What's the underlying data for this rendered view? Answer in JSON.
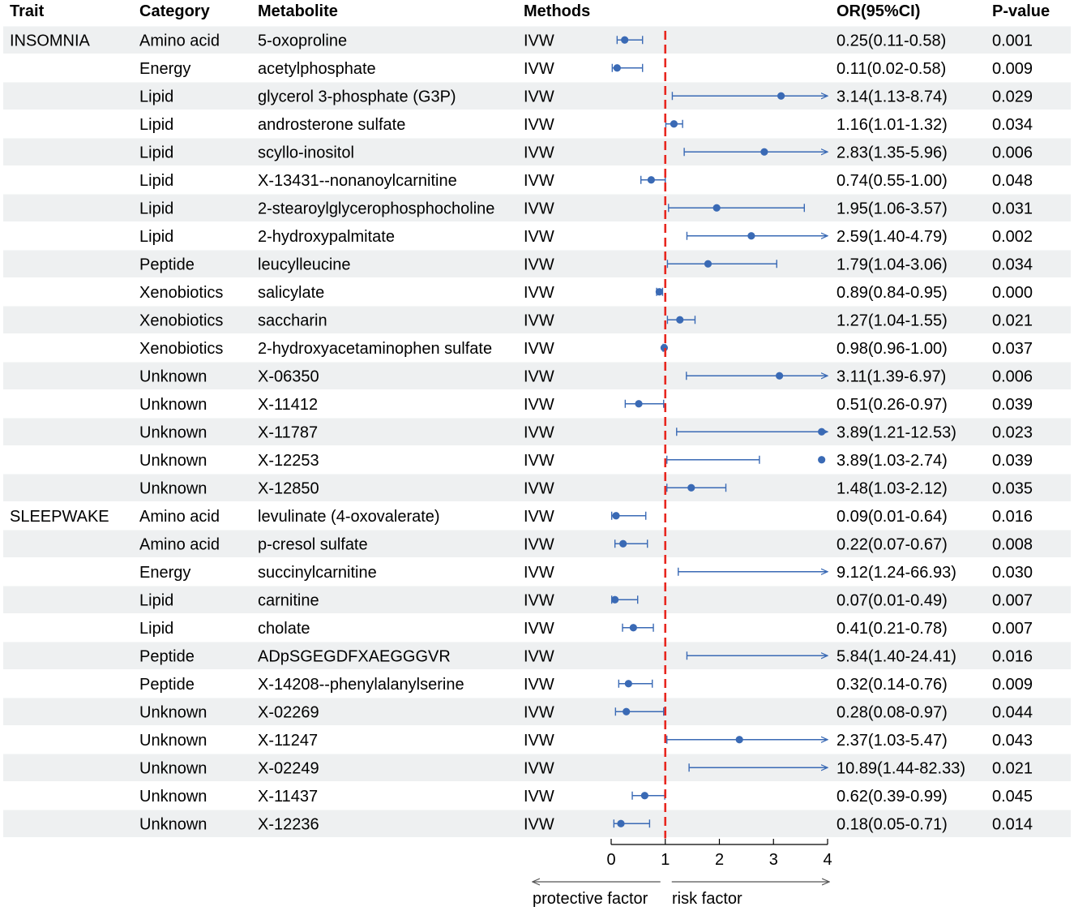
{
  "chart_data": {
    "type": "forest",
    "headers": {
      "trait": "Trait",
      "category": "Category",
      "metabolite": "Metabolite",
      "method": "Methods",
      "or_ci": "OR(95%CI)",
      "pvalue": "P-value"
    },
    "reference_value": 1,
    "axis": {
      "min": 0,
      "max": 4,
      "ticks": [
        0,
        1,
        2,
        3,
        4
      ]
    },
    "axis_annotations": {
      "left": "protective factor",
      "right": "risk factor"
    },
    "colors": {
      "point": "#3a6ab5",
      "reference_line": "#e8271f",
      "stripe": "#eef0f1",
      "axis": "#000000",
      "arrow": "#555555"
    },
    "rows": [
      {
        "trait": "INSOMNIA",
        "category": "Amino acid",
        "metabolite": "5-oxoproline",
        "method": "IVW",
        "or": 0.25,
        "lower": 0.11,
        "upper": 0.58,
        "or_ci": "0.25(0.11-0.58)",
        "pvalue": "0.001"
      },
      {
        "trait": "",
        "category": "Energy",
        "metabolite": "acetylphosphate",
        "method": "IVW",
        "or": 0.11,
        "lower": 0.02,
        "upper": 0.58,
        "or_ci": "0.11(0.02-0.58)",
        "pvalue": "0.009"
      },
      {
        "trait": "",
        "category": "Lipid",
        "metabolite": "glycerol 3-phosphate (G3P)",
        "method": "IVW",
        "or": 3.14,
        "lower": 1.13,
        "upper": 8.74,
        "or_ci": "3.14(1.13-8.74)",
        "pvalue": "0.029"
      },
      {
        "trait": "",
        "category": "Lipid",
        "metabolite": "androsterone sulfate",
        "method": "IVW",
        "or": 1.16,
        "lower": 1.01,
        "upper": 1.32,
        "or_ci": "1.16(1.01-1.32)",
        "pvalue": "0.034"
      },
      {
        "trait": "",
        "category": "Lipid",
        "metabolite": "scyllo-inositol",
        "method": "IVW",
        "or": 2.83,
        "lower": 1.35,
        "upper": 5.96,
        "or_ci": "2.83(1.35-5.96)",
        "pvalue": "0.006"
      },
      {
        "trait": "",
        "category": "Lipid",
        "metabolite": "X-13431--nonanoylcarnitine",
        "method": "IVW",
        "or": 0.74,
        "lower": 0.55,
        "upper": 1.0,
        "or_ci": "0.74(0.55-1.00)",
        "pvalue": "0.048"
      },
      {
        "trait": "",
        "category": "Lipid",
        "metabolite": "2-stearoylglycerophosphocholine",
        "method": "IVW",
        "or": 1.95,
        "lower": 1.06,
        "upper": 3.57,
        "or_ci": "1.95(1.06-3.57)",
        "pvalue": "0.031"
      },
      {
        "trait": "",
        "category": "Lipid",
        "metabolite": "2-hydroxypalmitate",
        "method": "IVW",
        "or": 2.59,
        "lower": 1.4,
        "upper": 4.79,
        "or_ci": "2.59(1.40-4.79)",
        "pvalue": "0.002"
      },
      {
        "trait": "",
        "category": "Peptide",
        "metabolite": "leucylleucine",
        "method": "IVW",
        "or": 1.79,
        "lower": 1.04,
        "upper": 3.06,
        "or_ci": "1.79(1.04-3.06)",
        "pvalue": "0.034"
      },
      {
        "trait": "",
        "category": "Xenobiotics",
        "metabolite": "salicylate",
        "method": "IVW",
        "or": 0.89,
        "lower": 0.84,
        "upper": 0.95,
        "or_ci": "0.89(0.84-0.95)",
        "pvalue": "0.000"
      },
      {
        "trait": "",
        "category": "Xenobiotics",
        "metabolite": "saccharin",
        "method": "IVW",
        "or": 1.27,
        "lower": 1.04,
        "upper": 1.55,
        "or_ci": "1.27(1.04-1.55)",
        "pvalue": "0.021"
      },
      {
        "trait": "",
        "category": "Xenobiotics",
        "metabolite": "2-hydroxyacetaminophen sulfate",
        "method": "IVW",
        "or": 0.98,
        "lower": 0.96,
        "upper": 1.0,
        "or_ci": "0.98(0.96-1.00)",
        "pvalue": "0.037"
      },
      {
        "trait": "",
        "category": "Unknown",
        "metabolite": "X-06350",
        "method": "IVW",
        "or": 3.11,
        "lower": 1.39,
        "upper": 6.97,
        "or_ci": "3.11(1.39-6.97)",
        "pvalue": "0.006"
      },
      {
        "trait": "",
        "category": "Unknown",
        "metabolite": "X-11412",
        "method": "IVW",
        "or": 0.51,
        "lower": 0.26,
        "upper": 0.97,
        "or_ci": "0.51(0.26-0.97)",
        "pvalue": "0.039"
      },
      {
        "trait": "",
        "category": "Unknown",
        "metabolite": "X-11787",
        "method": "IVW",
        "or": 3.89,
        "lower": 1.21,
        "upper": 12.53,
        "or_ci": "3.89(1.21-12.53)",
        "pvalue": "0.023"
      },
      {
        "trait": "",
        "category": "Unknown",
        "metabolite": "X-12253",
        "method": "IVW",
        "or": 3.89,
        "lower": 1.03,
        "upper": 2.74,
        "or_ci": "3.89(1.03-2.74)",
        "pvalue": "0.039"
      },
      {
        "trait": "",
        "category": "Unknown",
        "metabolite": "X-12850",
        "method": "IVW",
        "or": 1.48,
        "lower": 1.03,
        "upper": 2.12,
        "or_ci": "1.48(1.03-2.12)",
        "pvalue": "0.035"
      },
      {
        "trait": "SLEEPWAKE",
        "category": "Amino acid",
        "metabolite": "levulinate (4-oxovalerate)",
        "method": "IVW",
        "or": 0.09,
        "lower": 0.01,
        "upper": 0.64,
        "or_ci": "0.09(0.01-0.64)",
        "pvalue": "0.016"
      },
      {
        "trait": "",
        "category": "Amino acid",
        "metabolite": "p-cresol sulfate",
        "method": "IVW",
        "or": 0.22,
        "lower": 0.07,
        "upper": 0.67,
        "or_ci": "0.22(0.07-0.67)",
        "pvalue": "0.008"
      },
      {
        "trait": "",
        "category": "Energy",
        "metabolite": "succinylcarnitine",
        "method": "IVW",
        "or": 9.12,
        "lower": 1.24,
        "upper": 66.93,
        "or_ci": "9.12(1.24-66.93)",
        "pvalue": "0.030"
      },
      {
        "trait": "",
        "category": "Lipid",
        "metabolite": "carnitine",
        "method": "IVW",
        "or": 0.07,
        "lower": 0.01,
        "upper": 0.49,
        "or_ci": "0.07(0.01-0.49)",
        "pvalue": "0.007"
      },
      {
        "trait": "",
        "category": "Lipid",
        "metabolite": "cholate",
        "method": "IVW",
        "or": 0.41,
        "lower": 0.21,
        "upper": 0.78,
        "or_ci": "0.41(0.21-0.78)",
        "pvalue": "0.007"
      },
      {
        "trait": "",
        "category": "Peptide",
        "metabolite": "ADpSGEGDFXAEGGGVR",
        "method": "IVW",
        "or": 5.84,
        "lower": 1.4,
        "upper": 24.41,
        "or_ci": "5.84(1.40-24.41)",
        "pvalue": "0.016"
      },
      {
        "trait": "",
        "category": "Peptide",
        "metabolite": "X-14208--phenylalanylserine",
        "method": "IVW",
        "or": 0.32,
        "lower": 0.14,
        "upper": 0.76,
        "or_ci": "0.32(0.14-0.76)",
        "pvalue": "0.009"
      },
      {
        "trait": "",
        "category": "Unknown",
        "metabolite": "X-02269",
        "method": "IVW",
        "or": 0.28,
        "lower": 0.08,
        "upper": 0.97,
        "or_ci": "0.28(0.08-0.97)",
        "pvalue": "0.044"
      },
      {
        "trait": "",
        "category": "Unknown",
        "metabolite": "X-11247",
        "method": "IVW",
        "or": 2.37,
        "lower": 1.03,
        "upper": 5.47,
        "or_ci": "2.37(1.03-5.47)",
        "pvalue": "0.043"
      },
      {
        "trait": "",
        "category": "Unknown",
        "metabolite": "X-02249",
        "method": "IVW",
        "or": 10.89,
        "lower": 1.44,
        "upper": 82.33,
        "or_ci": "10.89(1.44-82.33)",
        "pvalue": "0.021"
      },
      {
        "trait": "",
        "category": "Unknown",
        "metabolite": "X-11437",
        "method": "IVW",
        "or": 0.62,
        "lower": 0.39,
        "upper": 0.99,
        "or_ci": "0.62(0.39-0.99)",
        "pvalue": "0.045"
      },
      {
        "trait": "",
        "category": "Unknown",
        "metabolite": "X-12236",
        "method": "IVW",
        "or": 0.18,
        "lower": 0.05,
        "upper": 0.71,
        "or_ci": "0.18(0.05-0.71)",
        "pvalue": "0.014"
      }
    ]
  }
}
